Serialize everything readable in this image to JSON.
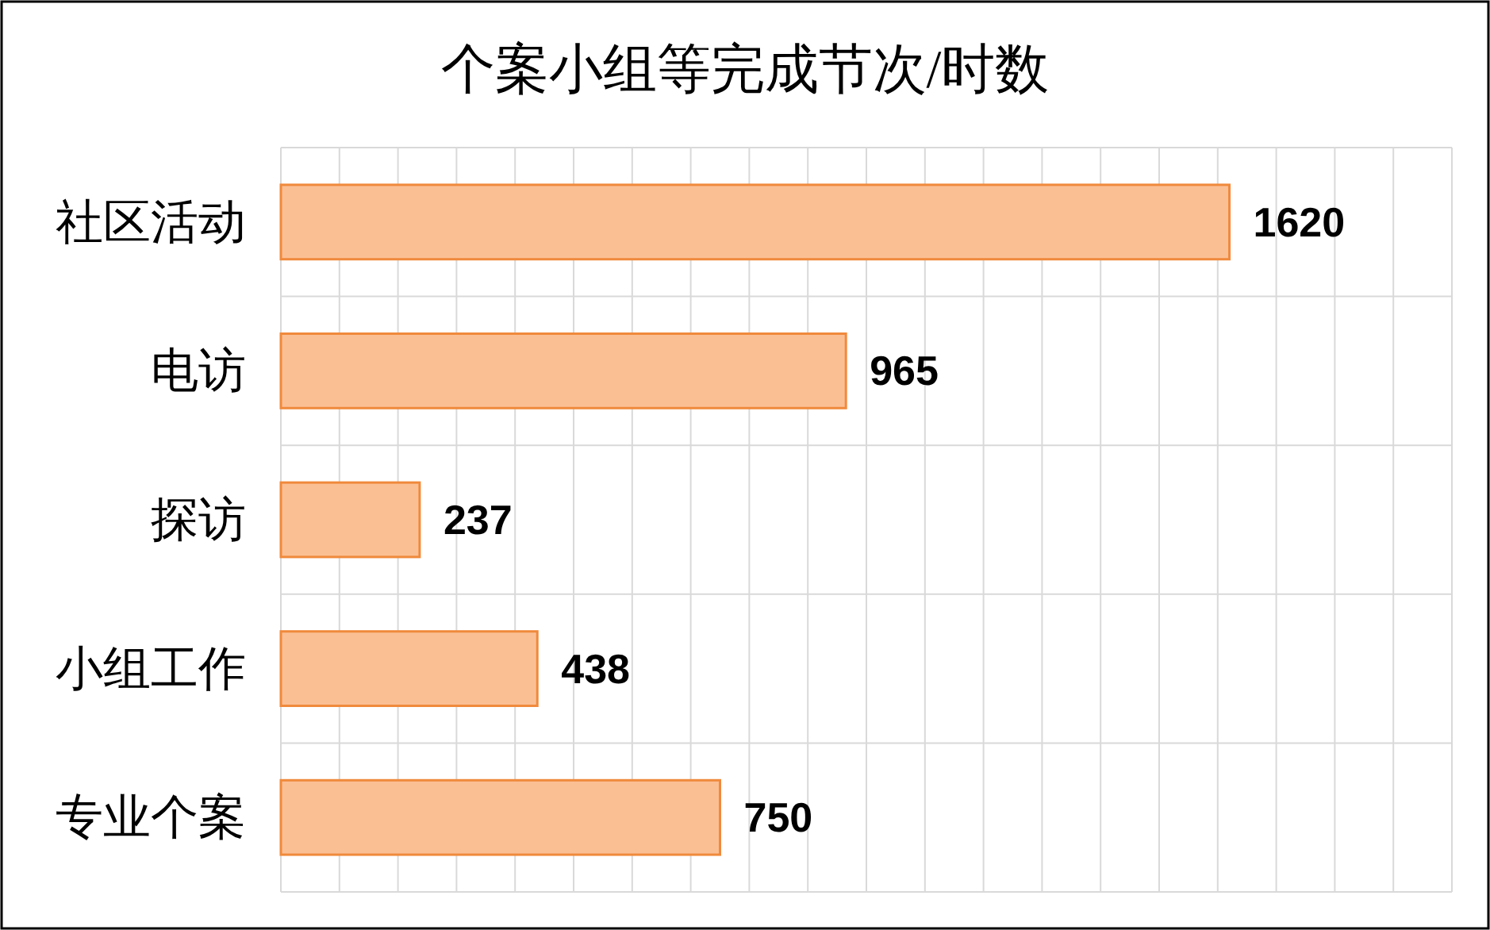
{
  "chart_data": {
    "type": "bar",
    "orientation": "horizontal",
    "title": "个案小组等完成节次/时数",
    "categories": [
      "社区活动",
      "电访",
      "探访",
      "小组工作",
      "专业个案"
    ],
    "values": [
      1620,
      965,
      237,
      438,
      750
    ],
    "color": "#fbbf94",
    "xlim": [
      0,
      2000
    ],
    "xticks": [
      {
        "value": 0,
        "label": null
      },
      {
        "value": 100,
        "label": null
      },
      {
        "value": 200,
        "label": null
      },
      {
        "value": 300,
        "label": null
      },
      {
        "value": 400,
        "label": null
      },
      {
        "value": 500,
        "label": null
      },
      {
        "value": 600,
        "label": null
      },
      {
        "value": 700,
        "label": null
      },
      {
        "value": 800,
        "label": null
      },
      {
        "value": 900,
        "label": null
      },
      {
        "value": 1000,
        "label": null
      },
      {
        "value": 1100,
        "label": null
      },
      {
        "value": 1200,
        "label": null
      },
      {
        "value": 1300,
        "label": null
      },
      {
        "value": 1400,
        "label": null
      },
      {
        "value": 1500,
        "label": null
      },
      {
        "value": 1600,
        "label": null
      },
      {
        "value": 1700,
        "label": null
      },
      {
        "value": 1800,
        "label": null
      },
      {
        "value": 1900,
        "label": null
      },
      {
        "value": 2000,
        "label": null
      }
    ],
    "grid": true,
    "data_labels": true
  }
}
